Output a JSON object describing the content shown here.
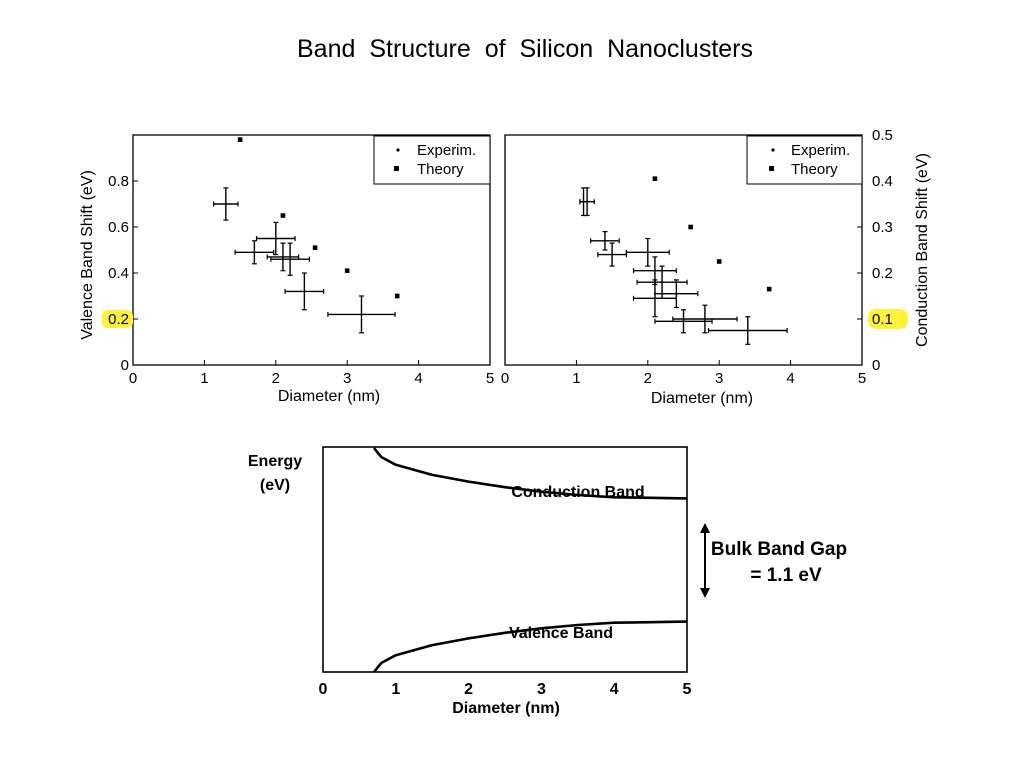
{
  "title": "Band Structure of Silicon Nanoclusters",
  "colors": {
    "highlight": "#fff23a",
    "ink": "#000000",
    "background": "#ffffff"
  },
  "chart_data": [
    {
      "id": "valence",
      "type": "scatter",
      "xlabel": "Diameter (nm)",
      "ylabel": "Valence Band Shift (eV)",
      "xlim": [
        0,
        5
      ],
      "ylim": [
        0,
        1.0
      ],
      "xticks": [
        "0",
        "1",
        "2",
        "3",
        "4",
        "5"
      ],
      "yticks": [
        {
          "value": 0,
          "label": "0"
        },
        {
          "value": 0.2,
          "label": "0.2",
          "highlighted": true
        },
        {
          "value": 0.4,
          "label": "0.4"
        },
        {
          "value": 0.6,
          "label": "0.6"
        },
        {
          "value": 0.8,
          "label": "0.8"
        }
      ],
      "legend": {
        "position": "top-right",
        "entries": [
          "Experim.",
          "Theory"
        ]
      },
      "series": [
        {
          "name": "Experim.",
          "points": [
            {
              "x": 1.3,
              "y": 0.7,
              "xerr": 0.17,
              "yerr": 0.07
            },
            {
              "x": 1.7,
              "y": 0.49,
              "xerr": 0.27,
              "yerr": 0.05
            },
            {
              "x": 2.0,
              "y": 0.55,
              "xerr": 0.27,
              "yerr": 0.07
            },
            {
              "x": 2.1,
              "y": 0.47,
              "xerr": 0.22,
              "yerr": 0.06
            },
            {
              "x": 2.2,
              "y": 0.46,
              "xerr": 0.27,
              "yerr": 0.07
            },
            {
              "x": 2.4,
              "y": 0.32,
              "xerr": 0.27,
              "yerr": 0.08
            },
            {
              "x": 3.2,
              "y": 0.22,
              "xerr": 0.47,
              "yerr": 0.08
            }
          ]
        },
        {
          "name": "Theory",
          "points": [
            {
              "x": 1.5,
              "y": 0.98
            },
            {
              "x": 2.1,
              "y": 0.65
            },
            {
              "x": 2.55,
              "y": 0.51
            },
            {
              "x": 3.0,
              "y": 0.41
            },
            {
              "x": 3.7,
              "y": 0.3
            }
          ]
        }
      ]
    },
    {
      "id": "conduction",
      "type": "scatter",
      "xlabel": "Diameter (nm)",
      "ylabel": "Conduction Band Shift (eV)",
      "xlim": [
        0,
        5
      ],
      "ylim": [
        0,
        0.5
      ],
      "xticks": [
        "0",
        "1",
        "2",
        "3",
        "4",
        "5"
      ],
      "yticks": [
        {
          "value": 0,
          "label": "0"
        },
        {
          "value": 0.1,
          "label": "0.1",
          "highlighted": true
        },
        {
          "value": 0.2,
          "label": "0.2"
        },
        {
          "value": 0.3,
          "label": "0.3"
        },
        {
          "value": 0.4,
          "label": "0.4"
        },
        {
          "value": 0.5,
          "label": "0.5"
        }
      ],
      "legend": {
        "position": "top-right",
        "entries": [
          "Experim.",
          "Theory"
        ]
      },
      "series": [
        {
          "name": "Experim.",
          "points": [
            {
              "x": 1.1,
              "y": 0.355,
              "xerr": 0.05,
              "yerr": 0.03
            },
            {
              "x": 1.15,
              "y": 0.355,
              "xerr": 0.1,
              "yerr": 0.03
            },
            {
              "x": 1.4,
              "y": 0.27,
              "xerr": 0.2,
              "yerr": 0.02
            },
            {
              "x": 1.5,
              "y": 0.24,
              "xerr": 0.2,
              "yerr": 0.025
            },
            {
              "x": 2.0,
              "y": 0.245,
              "xerr": 0.3,
              "yerr": 0.03
            },
            {
              "x": 2.2,
              "y": 0.18,
              "xerr": 0.35,
              "yerr": 0.035
            },
            {
              "x": 2.1,
              "y": 0.205,
              "xerr": 0.3,
              "yerr": 0.03
            },
            {
              "x": 2.4,
              "y": 0.155,
              "xerr": 0.3,
              "yerr": 0.03
            },
            {
              "x": 2.1,
              "y": 0.145,
              "xerr": 0.3,
              "yerr": 0.04
            },
            {
              "x": 2.8,
              "y": 0.1,
              "xerr": 0.45,
              "yerr": 0.03
            },
            {
              "x": 2.5,
              "y": 0.095,
              "xerr": 0.4,
              "yerr": 0.025
            },
            {
              "x": 3.4,
              "y": 0.075,
              "xerr": 0.55,
              "yerr": 0.03
            }
          ]
        },
        {
          "name": "Theory",
          "points": [
            {
              "x": 2.1,
              "y": 0.405
            },
            {
              "x": 2.6,
              "y": 0.3
            },
            {
              "x": 3.0,
              "y": 0.225
            },
            {
              "x": 3.7,
              "y": 0.165
            }
          ]
        }
      ]
    },
    {
      "id": "bands",
      "type": "line",
      "ylabel_lines": [
        "Energy",
        "(eV)"
      ],
      "xlabel": "Diameter  (nm)",
      "xlim": [
        0,
        5
      ],
      "xticks": [
        "0",
        "1",
        "2",
        "3",
        "4",
        "5"
      ],
      "labels": {
        "conduction": "Conduction Band",
        "valence": "Valence Band",
        "gap_line1": "Bulk Band Gap",
        "gap_line2": "= 1.1 eV"
      },
      "series": [
        {
          "id": "conduction-curve",
          "x": [
            0.7,
            0.8,
            1.0,
            1.5,
            2.0,
            2.5,
            3.0,
            3.5,
            4.0,
            4.5,
            5.0
          ],
          "energy": [
            1.0,
            0.92,
            0.85,
            0.76,
            0.7,
            0.65,
            0.61,
            0.58,
            0.56,
            0.555,
            0.55
          ]
        },
        {
          "id": "valence-curve",
          "x": [
            0.7,
            0.8,
            1.0,
            1.5,
            2.0,
            2.5,
            3.0,
            3.5,
            4.0,
            4.5,
            5.0
          ],
          "energy": [
            -1.0,
            -0.92,
            -0.85,
            -0.76,
            -0.7,
            -0.65,
            -0.61,
            -0.58,
            -0.56,
            -0.555,
            -0.55
          ]
        }
      ]
    }
  ]
}
